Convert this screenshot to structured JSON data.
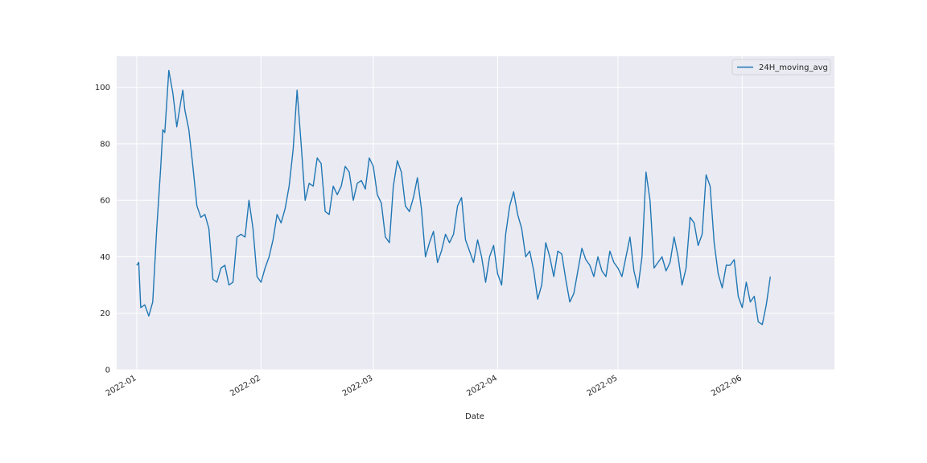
{
  "colors": {
    "plot_background": "#eaeaf2",
    "grid": "#ffffff",
    "series_line": "#1f77b4",
    "text": "#262626"
  },
  "chart_data": {
    "type": "line",
    "title": "",
    "xlabel": "Date",
    "ylabel": "",
    "x_scale": "time",
    "xlim": [
      "2021-12-27",
      "2022-06-24"
    ],
    "ylim": [
      0,
      111
    ],
    "grid": true,
    "legend_position": "top-right",
    "x_ticks": [
      "2022-01-01",
      "2022-02-01",
      "2022-03-01",
      "2022-04-01",
      "2022-05-01",
      "2022-06-01"
    ],
    "x_tick_labels": [
      "2022-01",
      "2022-02",
      "2022-03",
      "2022-04",
      "2022-05",
      "2022-06"
    ],
    "y_ticks": [
      0,
      20,
      40,
      60,
      80,
      100
    ],
    "y_tick_labels": [
      "0",
      "20",
      "40",
      "60",
      "80",
      "100"
    ],
    "series": [
      {
        "name": "24H_moving_avg",
        "color": "#1f77b4",
        "points": [
          [
            "2022-01-01",
            37
          ],
          [
            "2022-01-01 12:00",
            38
          ],
          [
            "2022-01-02",
            22
          ],
          [
            "2022-01-03",
            23
          ],
          [
            "2022-01-04",
            19
          ],
          [
            "2022-01-05",
            24
          ],
          [
            "2022-01-06",
            50
          ],
          [
            "2022-01-07",
            72
          ],
          [
            "2022-01-07 12:00",
            85
          ],
          [
            "2022-01-08",
            84
          ],
          [
            "2022-01-09",
            106
          ],
          [
            "2022-01-10",
            98
          ],
          [
            "2022-01-11",
            86
          ],
          [
            "2022-01-12",
            95
          ],
          [
            "2022-01-12 12:00",
            99
          ],
          [
            "2022-01-13",
            92
          ],
          [
            "2022-01-14",
            85
          ],
          [
            "2022-01-15",
            72
          ],
          [
            "2022-01-16",
            58
          ],
          [
            "2022-01-17",
            54
          ],
          [
            "2022-01-18",
            55
          ],
          [
            "2022-01-19",
            50
          ],
          [
            "2022-01-20",
            32
          ],
          [
            "2022-01-21",
            31
          ],
          [
            "2022-01-22",
            36
          ],
          [
            "2022-01-23",
            37
          ],
          [
            "2022-01-24",
            30
          ],
          [
            "2022-01-25",
            31
          ],
          [
            "2022-01-26",
            47
          ],
          [
            "2022-01-27",
            48
          ],
          [
            "2022-01-28",
            47
          ],
          [
            "2022-01-29",
            60
          ],
          [
            "2022-01-30",
            50
          ],
          [
            "2022-01-31",
            33
          ],
          [
            "2022-02-01",
            31
          ],
          [
            "2022-02-02",
            36
          ],
          [
            "2022-02-03",
            40
          ],
          [
            "2022-02-04",
            46
          ],
          [
            "2022-02-05",
            55
          ],
          [
            "2022-02-06",
            52
          ],
          [
            "2022-02-07",
            57
          ],
          [
            "2022-02-08",
            65
          ],
          [
            "2022-02-09",
            78
          ],
          [
            "2022-02-10",
            99
          ],
          [
            "2022-02-11",
            80
          ],
          [
            "2022-02-12",
            60
          ],
          [
            "2022-02-13",
            66
          ],
          [
            "2022-02-14",
            65
          ],
          [
            "2022-02-15",
            75
          ],
          [
            "2022-02-16",
            73
          ],
          [
            "2022-02-17",
            56
          ],
          [
            "2022-02-18",
            55
          ],
          [
            "2022-02-19",
            65
          ],
          [
            "2022-02-20",
            62
          ],
          [
            "2022-02-21",
            65
          ],
          [
            "2022-02-22",
            72
          ],
          [
            "2022-02-23",
            70
          ],
          [
            "2022-02-24",
            60
          ],
          [
            "2022-02-25",
            66
          ],
          [
            "2022-02-26",
            67
          ],
          [
            "2022-02-27",
            64
          ],
          [
            "2022-02-28",
            75
          ],
          [
            "2022-03-01",
            72
          ],
          [
            "2022-03-02",
            62
          ],
          [
            "2022-03-03",
            59
          ],
          [
            "2022-03-04",
            47
          ],
          [
            "2022-03-05",
            45
          ],
          [
            "2022-03-06",
            65
          ],
          [
            "2022-03-07",
            74
          ],
          [
            "2022-03-08",
            70
          ],
          [
            "2022-03-09",
            58
          ],
          [
            "2022-03-10",
            56
          ],
          [
            "2022-03-11",
            61
          ],
          [
            "2022-03-12",
            68
          ],
          [
            "2022-03-13",
            57
          ],
          [
            "2022-03-14",
            40
          ],
          [
            "2022-03-15",
            45
          ],
          [
            "2022-03-16",
            49
          ],
          [
            "2022-03-17",
            38
          ],
          [
            "2022-03-18",
            42
          ],
          [
            "2022-03-19",
            48
          ],
          [
            "2022-03-20",
            45
          ],
          [
            "2022-03-21",
            48
          ],
          [
            "2022-03-22",
            58
          ],
          [
            "2022-03-23",
            61
          ],
          [
            "2022-03-24",
            46
          ],
          [
            "2022-03-25",
            42
          ],
          [
            "2022-03-26",
            38
          ],
          [
            "2022-03-27",
            46
          ],
          [
            "2022-03-28",
            40
          ],
          [
            "2022-03-29",
            31
          ],
          [
            "2022-03-30",
            40
          ],
          [
            "2022-03-31",
            44
          ],
          [
            "2022-04-01",
            34
          ],
          [
            "2022-04-02",
            30
          ],
          [
            "2022-04-03",
            48
          ],
          [
            "2022-04-04",
            58
          ],
          [
            "2022-04-05",
            63
          ],
          [
            "2022-04-06",
            55
          ],
          [
            "2022-04-07",
            50
          ],
          [
            "2022-04-08",
            40
          ],
          [
            "2022-04-09",
            42
          ],
          [
            "2022-04-10",
            35
          ],
          [
            "2022-04-11",
            25
          ],
          [
            "2022-04-12",
            30
          ],
          [
            "2022-04-13",
            45
          ],
          [
            "2022-04-14",
            40
          ],
          [
            "2022-04-15",
            33
          ],
          [
            "2022-04-16",
            42
          ],
          [
            "2022-04-17",
            41
          ],
          [
            "2022-04-18",
            32
          ],
          [
            "2022-04-19",
            24
          ],
          [
            "2022-04-20",
            27
          ],
          [
            "2022-04-21",
            35
          ],
          [
            "2022-04-22",
            43
          ],
          [
            "2022-04-23",
            39
          ],
          [
            "2022-04-24",
            37
          ],
          [
            "2022-04-25",
            33
          ],
          [
            "2022-04-26",
            40
          ],
          [
            "2022-04-27",
            35
          ],
          [
            "2022-04-28",
            33
          ],
          [
            "2022-04-29",
            42
          ],
          [
            "2022-04-30",
            38
          ],
          [
            "2022-05-01",
            36
          ],
          [
            "2022-05-02",
            33
          ],
          [
            "2022-05-03",
            40
          ],
          [
            "2022-05-04",
            47
          ],
          [
            "2022-05-05",
            35
          ],
          [
            "2022-05-06",
            29
          ],
          [
            "2022-05-07",
            40
          ],
          [
            "2022-05-08",
            70
          ],
          [
            "2022-05-09",
            60
          ],
          [
            "2022-05-10",
            36
          ],
          [
            "2022-05-11",
            38
          ],
          [
            "2022-05-12",
            40
          ],
          [
            "2022-05-13",
            35
          ],
          [
            "2022-05-14",
            38
          ],
          [
            "2022-05-15",
            47
          ],
          [
            "2022-05-16",
            40
          ],
          [
            "2022-05-17",
            30
          ],
          [
            "2022-05-18",
            36
          ],
          [
            "2022-05-19",
            54
          ],
          [
            "2022-05-20",
            52
          ],
          [
            "2022-05-21",
            44
          ],
          [
            "2022-05-22",
            48
          ],
          [
            "2022-05-23",
            69
          ],
          [
            "2022-05-24",
            65
          ],
          [
            "2022-05-25",
            45
          ],
          [
            "2022-05-26",
            34
          ],
          [
            "2022-05-27",
            29
          ],
          [
            "2022-05-28",
            37
          ],
          [
            "2022-05-29",
            37
          ],
          [
            "2022-05-30",
            39
          ],
          [
            "2022-05-31",
            26
          ],
          [
            "2022-06-01",
            22
          ],
          [
            "2022-06-02",
            31
          ],
          [
            "2022-06-03",
            24
          ],
          [
            "2022-06-04",
            26
          ],
          [
            "2022-06-05",
            17
          ],
          [
            "2022-06-06",
            16
          ],
          [
            "2022-06-07",
            23
          ],
          [
            "2022-06-08",
            33
          ]
        ]
      }
    ]
  }
}
